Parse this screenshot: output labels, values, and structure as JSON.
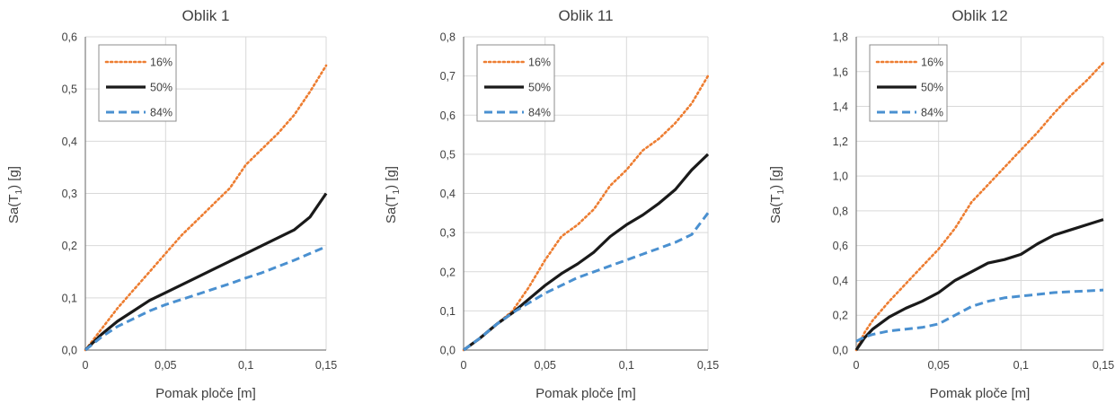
{
  "colors": {
    "p16": "#ed7d31",
    "p50": "#1a1a1a",
    "p84": "#4a90d0",
    "grid": "#d9d9d9",
    "axis": "#7f7f7f",
    "legend_border": "#8c8c8c"
  },
  "chart_data": [
    {
      "type": "line",
      "title": "Oblik 1",
      "xlabel": "Pomak ploče [m]",
      "ylabel_main": "Sa(T",
      "ylabel_sub": "1",
      "ylabel_end": ") [g]",
      "xlim": [
        0,
        0.15
      ],
      "ylim": [
        0,
        0.6
      ],
      "xticks": [
        0,
        0.05,
        0.1,
        0.15
      ],
      "xtick_labels": [
        "0",
        "0,05",
        "0,1",
        "0,15"
      ],
      "yticks": [
        0,
        0.1,
        0.2,
        0.3,
        0.4,
        0.5,
        0.6
      ],
      "ytick_labels": [
        "0,0",
        "0,1",
        "0,2",
        "0,3",
        "0,4",
        "0,5",
        "0,6"
      ],
      "grid": true,
      "legend_position": "top-left",
      "series": [
        {
          "name": "16%",
          "style": "dotted",
          "color_key": "p16",
          "x": [
            0,
            0.01,
            0.02,
            0.03,
            0.04,
            0.05,
            0.06,
            0.07,
            0.08,
            0.09,
            0.1,
            0.11,
            0.12,
            0.13,
            0.14,
            0.15
          ],
          "y": [
            0,
            0.04,
            0.08,
            0.115,
            0.15,
            0.185,
            0.22,
            0.25,
            0.28,
            0.31,
            0.355,
            0.385,
            0.415,
            0.45,
            0.495,
            0.545
          ]
        },
        {
          "name": "50%",
          "style": "solid",
          "color_key": "p50",
          "x": [
            0,
            0.01,
            0.02,
            0.03,
            0.04,
            0.05,
            0.06,
            0.07,
            0.08,
            0.09,
            0.1,
            0.11,
            0.12,
            0.13,
            0.14,
            0.15
          ],
          "y": [
            0,
            0.03,
            0.055,
            0.075,
            0.095,
            0.11,
            0.125,
            0.14,
            0.155,
            0.17,
            0.185,
            0.2,
            0.215,
            0.23,
            0.255,
            0.3
          ]
        },
        {
          "name": "84%",
          "style": "dashed",
          "color_key": "p84",
          "x": [
            0,
            0.01,
            0.02,
            0.03,
            0.04,
            0.05,
            0.06,
            0.07,
            0.08,
            0.09,
            0.1,
            0.11,
            0.12,
            0.13,
            0.14,
            0.15
          ],
          "y": [
            0,
            0.025,
            0.045,
            0.06,
            0.075,
            0.087,
            0.097,
            0.107,
            0.117,
            0.127,
            0.138,
            0.148,
            0.16,
            0.172,
            0.185,
            0.198
          ]
        }
      ]
    },
    {
      "type": "line",
      "title": "Oblik 11",
      "xlabel": "Pomak ploče [m]",
      "ylabel_main": "Sa(T",
      "ylabel_sub": "1",
      "ylabel_end": ") [g]",
      "xlim": [
        0,
        0.15
      ],
      "ylim": [
        0,
        0.8
      ],
      "xticks": [
        0,
        0.05,
        0.1,
        0.15
      ],
      "xtick_labels": [
        "0",
        "0,05",
        "0,1",
        "0,15"
      ],
      "yticks": [
        0,
        0.1,
        0.2,
        0.3,
        0.4,
        0.5,
        0.6,
        0.7,
        0.8
      ],
      "ytick_labels": [
        "0,0",
        "0,1",
        "0,2",
        "0,3",
        "0,4",
        "0,5",
        "0,6",
        "0,7",
        "0,8"
      ],
      "grid": true,
      "legend_position": "top-left",
      "series": [
        {
          "name": "16%",
          "style": "dotted",
          "color_key": "p16",
          "x": [
            0,
            0.01,
            0.02,
            0.03,
            0.04,
            0.05,
            0.06,
            0.07,
            0.08,
            0.09,
            0.1,
            0.11,
            0.12,
            0.13,
            0.14,
            0.15
          ],
          "y": [
            0,
            0.03,
            0.065,
            0.1,
            0.16,
            0.23,
            0.29,
            0.32,
            0.36,
            0.42,
            0.46,
            0.51,
            0.54,
            0.58,
            0.63,
            0.7
          ]
        },
        {
          "name": "50%",
          "style": "solid",
          "color_key": "p50",
          "x": [
            0,
            0.01,
            0.02,
            0.03,
            0.04,
            0.05,
            0.06,
            0.07,
            0.08,
            0.09,
            0.1,
            0.11,
            0.12,
            0.13,
            0.14,
            0.15
          ],
          "y": [
            0,
            0.03,
            0.065,
            0.095,
            0.13,
            0.165,
            0.195,
            0.22,
            0.25,
            0.29,
            0.32,
            0.345,
            0.375,
            0.41,
            0.46,
            0.5
          ]
        },
        {
          "name": "84%",
          "style": "dashed",
          "color_key": "p84",
          "x": [
            0,
            0.01,
            0.02,
            0.03,
            0.04,
            0.05,
            0.06,
            0.07,
            0.08,
            0.09,
            0.1,
            0.11,
            0.12,
            0.13,
            0.14,
            0.15
          ],
          "y": [
            0,
            0.03,
            0.065,
            0.095,
            0.12,
            0.145,
            0.165,
            0.185,
            0.2,
            0.215,
            0.23,
            0.245,
            0.26,
            0.275,
            0.295,
            0.35
          ]
        }
      ]
    },
    {
      "type": "line",
      "title": "Oblik 12",
      "xlabel": "Pomak ploče [m]",
      "ylabel_main": "Sa(T",
      "ylabel_sub": "1",
      "ylabel_end": ") [g]",
      "xlim": [
        0,
        0.15
      ],
      "ylim": [
        0,
        1.8
      ],
      "xticks": [
        0,
        0.05,
        0.1,
        0.15
      ],
      "xtick_labels": [
        "0",
        "0,05",
        "0,1",
        "0,15"
      ],
      "yticks": [
        0,
        0.2,
        0.4,
        0.6,
        0.8,
        1.0,
        1.2,
        1.4,
        1.6,
        1.8
      ],
      "ytick_labels": [
        "0,0",
        "0,2",
        "0,4",
        "0,6",
        "0,8",
        "1,0",
        "1,2",
        "1,4",
        "1,6",
        "1,8"
      ],
      "grid": true,
      "legend_position": "top-left",
      "series": [
        {
          "name": "16%",
          "style": "dotted",
          "color_key": "p16",
          "x": [
            0,
            0.005,
            0.01,
            0.02,
            0.03,
            0.04,
            0.05,
            0.06,
            0.07,
            0.08,
            0.09,
            0.1,
            0.11,
            0.12,
            0.13,
            0.14,
            0.15
          ],
          "y": [
            0,
            0.1,
            0.17,
            0.28,
            0.38,
            0.48,
            0.58,
            0.7,
            0.85,
            0.95,
            1.05,
            1.15,
            1.25,
            1.36,
            1.46,
            1.55,
            1.65
          ]
        },
        {
          "name": "50%",
          "style": "solid",
          "color_key": "p50",
          "x": [
            0,
            0.005,
            0.01,
            0.02,
            0.03,
            0.04,
            0.05,
            0.06,
            0.07,
            0.08,
            0.09,
            0.1,
            0.11,
            0.12,
            0.13,
            0.14,
            0.15
          ],
          "y": [
            0,
            0.07,
            0.12,
            0.19,
            0.24,
            0.28,
            0.33,
            0.4,
            0.45,
            0.5,
            0.52,
            0.55,
            0.61,
            0.66,
            0.69,
            0.72,
            0.75
          ]
        },
        {
          "name": "84%",
          "style": "dashed",
          "color_key": "p84",
          "x": [
            0,
            0.005,
            0.01,
            0.02,
            0.03,
            0.04,
            0.05,
            0.06,
            0.07,
            0.08,
            0.09,
            0.1,
            0.11,
            0.12,
            0.13,
            0.14,
            0.15
          ],
          "y": [
            0.05,
            0.075,
            0.09,
            0.11,
            0.12,
            0.13,
            0.15,
            0.2,
            0.25,
            0.28,
            0.3,
            0.31,
            0.32,
            0.33,
            0.335,
            0.34,
            0.345
          ]
        }
      ]
    }
  ]
}
